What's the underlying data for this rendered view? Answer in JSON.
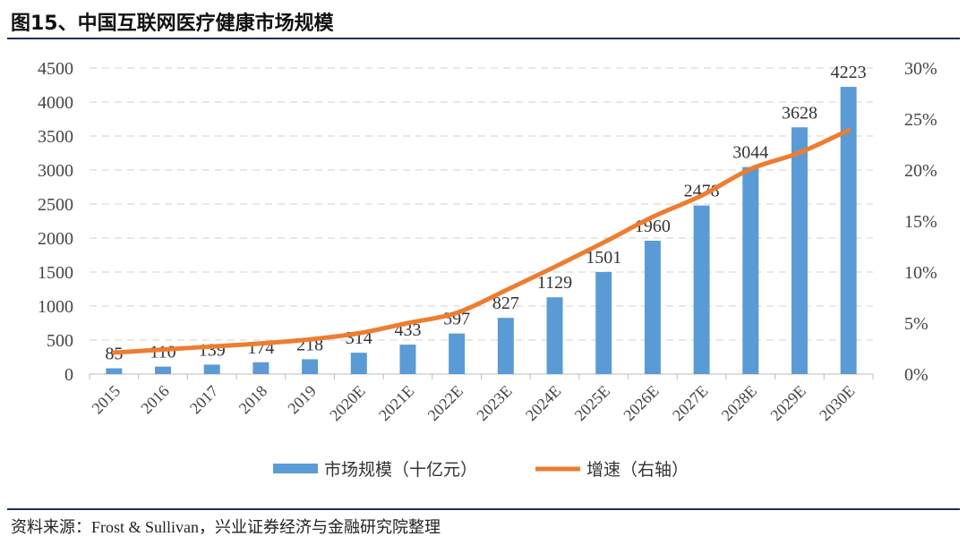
{
  "title": "图15、中国互联网医疗健康市场规模",
  "source": "资料来源：Frost & Sullivan，兴业证券经济与金融研究院整理",
  "chart_data": {
    "type": "bar+line",
    "categories": [
      "2015",
      "2016",
      "2017",
      "2018",
      "2019",
      "2020E",
      "2021E",
      "2022E",
      "2023E",
      "2024E",
      "2025E",
      "2026E",
      "2027E",
      "2028E",
      "2029E",
      "2030E"
    ],
    "series": [
      {
        "name": "市场规模（十亿元）",
        "type": "bar",
        "axis": "left",
        "color": "#5b9bd5",
        "values": [
          85,
          110,
          139,
          174,
          218,
          314,
          433,
          597,
          827,
          1129,
          1501,
          1960,
          2478,
          3044,
          3628,
          4223
        ]
      },
      {
        "name": "增速（右轴）",
        "type": "line",
        "axis": "right",
        "color": "#ed7d31",
        "values": [
          2.1,
          2.4,
          2.7,
          3.0,
          3.4,
          4.0,
          5.0,
          6.0,
          8.2,
          10.5,
          12.9,
          15.4,
          17.5,
          20.1,
          21.7,
          23.9
        ]
      }
    ],
    "y_left": {
      "range": [
        0,
        4500
      ],
      "ticks": [
        "0",
        "500",
        "1000",
        "1500",
        "2000",
        "2500",
        "3000",
        "3500",
        "4000",
        "4500"
      ]
    },
    "y_right": {
      "range": [
        0,
        30
      ],
      "ticks": [
        "0%",
        "5%",
        "10%",
        "15%",
        "20%",
        "25%",
        "30%"
      ]
    },
    "grid": true,
    "legend": "bottom"
  }
}
